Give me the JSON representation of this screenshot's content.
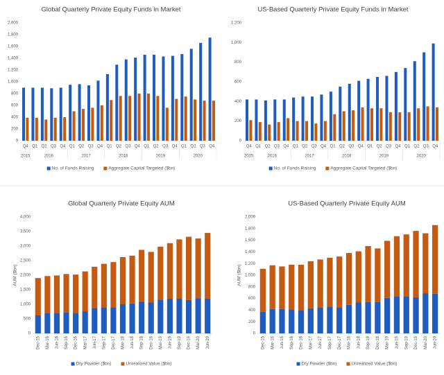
{
  "chart_data": [
    {
      "type": "bar",
      "title": "Global Quarterly Private Equity Funds in Market",
      "categories": [
        "Q4",
        "Q1",
        "Q2",
        "Q3",
        "Q4",
        "Q1",
        "Q2",
        "Q3",
        "Q4",
        "Q1",
        "Q2",
        "Q3",
        "Q4",
        "Q1",
        "Q2",
        "Q3",
        "Q4",
        "Q1",
        "Q2",
        "Q3",
        "Q4"
      ],
      "years": [
        "2015",
        "2016",
        "2017",
        "2018",
        "2019",
        "2020"
      ],
      "series": [
        {
          "name": "No. of Funds Raising",
          "color": "#1f5cbf",
          "values": [
            900,
            900,
            900,
            890,
            900,
            950,
            960,
            940,
            1020,
            1130,
            1290,
            1380,
            1410,
            1460,
            1460,
            1430,
            1440,
            1470,
            1560,
            1660,
            1750
          ]
        },
        {
          "name": "Aggregate Capital Targeted ($bn)",
          "color": "#c55a11",
          "values": [
            390,
            390,
            360,
            390,
            400,
            500,
            540,
            560,
            600,
            690,
            760,
            760,
            800,
            800,
            760,
            560,
            710,
            750,
            700,
            680,
            680
          ]
        }
      ],
      "ylim": [
        0,
        2000
      ],
      "yticks": [
        0,
        200,
        400,
        600,
        800,
        {
          "value": 1000,
          "label": "1,000"
        },
        {
          "value": 1200,
          "label": "1,200"
        },
        {
          "value": 1400,
          "label": "1,400"
        },
        {
          "value": 1600,
          "label": "1,600"
        },
        {
          "value": 1800,
          "label": "1,800"
        },
        {
          "value": 2000,
          "label": "2,000"
        }
      ],
      "grid": false,
      "legend": "bottom"
    },
    {
      "type": "bar",
      "title": "US-Based Quarterly Private Equity Funds in Market",
      "categories": [
        "Q4",
        "Q1",
        "Q2",
        "Q3",
        "Q4",
        "Q1",
        "Q2",
        "Q3",
        "Q4",
        "Q1",
        "Q2",
        "Q3",
        "Q4",
        "Q1",
        "Q2",
        "Q3",
        "Q4",
        "Q1",
        "Q2",
        "Q3",
        "Q4"
      ],
      "years": [
        "2015",
        "2016",
        "2017",
        "2018",
        "2019",
        "2020"
      ],
      "series": [
        {
          "name": "No. of Funds Raising",
          "color": "#1f5cbf",
          "values": [
            420,
            420,
            410,
            420,
            420,
            440,
            450,
            450,
            470,
            500,
            550,
            580,
            610,
            630,
            650,
            660,
            700,
            740,
            810,
            900,
            990
          ]
        },
        {
          "name": "Aggregate Capital Targeted ($bn)",
          "color": "#c55a11",
          "values": [
            210,
            190,
            165,
            190,
            230,
            200,
            200,
            175,
            200,
            270,
            300,
            310,
            340,
            330,
            330,
            290,
            290,
            290,
            330,
            350,
            340
          ]
        }
      ],
      "ylim": [
        0,
        1200
      ],
      "yticks": [
        0,
        200,
        400,
        600,
        800,
        {
          "value": 1000,
          "label": "1,000"
        },
        {
          "value": 1200,
          "label": "1,200"
        }
      ],
      "grid": false,
      "legend": "bottom"
    },
    {
      "type": "bar",
      "stacked": true,
      "title": "Global Quarterly Private Equity AUM",
      "y_label": "AUM ($bn)",
      "categories": [
        "Dec-15",
        "Mar-16",
        "Jun-16",
        "Sep-16",
        "Dec-16",
        "Mar-17",
        "Jun-17",
        "Sep-17",
        "Dec-17",
        "Mar-18",
        "Jun-18",
        "Sep-18",
        "Dec-18",
        "Mar-19",
        "Jun-19",
        "Sep-19",
        "Dec-19",
        "Mar-20",
        "Jun-20"
      ],
      "series": [
        {
          "name": "Dry Powder ($bn)",
          "color": "#1f5cbf",
          "values": [
            620,
            690,
            700,
            730,
            690,
            760,
            870,
            900,
            900,
            1000,
            1030,
            1100,
            1060,
            1160,
            1190,
            1200,
            1150,
            1210,
            1200
          ]
        },
        {
          "name": "Unrealized Value ($bn)",
          "color": "#c55a11",
          "values": [
            1280,
            1280,
            1290,
            1310,
            1330,
            1370,
            1420,
            1490,
            1550,
            1620,
            1640,
            1770,
            1740,
            1820,
            1910,
            2030,
            2170,
            2050,
            2250
          ]
        }
      ],
      "ylim": [
        0,
        4000
      ],
      "yticks": [
        0,
        500,
        {
          "value": 1000,
          "label": "1,000"
        },
        {
          "value": 1500,
          "label": "1,500"
        },
        {
          "value": 2000,
          "label": "2,000"
        },
        {
          "value": 2500,
          "label": "2,500"
        },
        {
          "value": 3000,
          "label": "3,000"
        },
        {
          "value": 3500,
          "label": "3,500"
        },
        {
          "value": 4000,
          "label": "4,000"
        }
      ],
      "grid": false,
      "legend": "bottom"
    },
    {
      "type": "bar",
      "stacked": true,
      "title": "US-Based Quarterly Private Equity AUM",
      "y_label": "AUM ($bn)",
      "categories": [
        "Dec-15",
        "Mar-16",
        "Jun-16",
        "Sep-16",
        "Dec-16",
        "Mar-17",
        "Jun-17",
        "Sep-17",
        "Dec-17",
        "Mar-18",
        "Jun-18",
        "Sep-18",
        "Dec-18",
        "Mar-19",
        "Jun-19",
        "Sep-19",
        "Dec-19",
        "Mar-20",
        "Jun-20"
      ],
      "series": [
        {
          "name": "Dry Powder ($bn)",
          "color": "#1f5cbf",
          "values": [
            370,
            420,
            420,
            410,
            400,
            430,
            440,
            460,
            450,
            490,
            530,
            540,
            540,
            610,
            640,
            640,
            620,
            690,
            680
          ]
        },
        {
          "name": "Unrealized Value ($bn)",
          "color": "#c55a11",
          "values": [
            740,
            750,
            730,
            770,
            780,
            810,
            830,
            840,
            870,
            890,
            880,
            960,
            920,
            980,
            1030,
            1060,
            1140,
            1030,
            1180
          ]
        }
      ],
      "ylim": [
        0,
        2000
      ],
      "yticks": [
        0,
        200,
        400,
        600,
        800,
        {
          "value": 1000,
          "label": "1,000"
        },
        {
          "value": 1200,
          "label": "1,200"
        },
        {
          "value": 1400,
          "label": "1,400"
        },
        {
          "value": 1600,
          "label": "1,600"
        },
        {
          "value": 1800,
          "label": "1,800"
        },
        {
          "value": 2000,
          "label": "2,000"
        }
      ],
      "grid": false,
      "legend": "bottom"
    }
  ]
}
